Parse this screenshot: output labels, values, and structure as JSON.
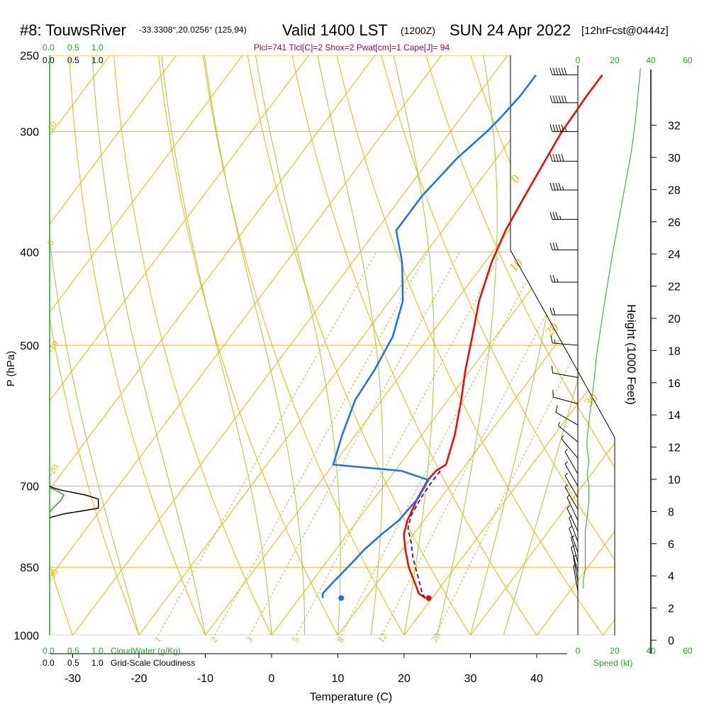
{
  "header": {
    "station": "#8: TouwsRiver",
    "location": "-33.3308°,20.0256° (125,94)",
    "valid": "Valid 1400 LST",
    "zulu": "(1200Z)",
    "date": "SUN 24 Apr 2022",
    "forecast": "[12hrFcst@0444z]",
    "indices": "Plcl=741 Tlcl[C]=2 Shox=2 Pwat[cm]=1 Cape[J]= 94"
  },
  "labels": {
    "pressure_axis": "P (hPa)",
    "temperature_axis": "Temperature (C)",
    "height_axis": "Height (1000 Feet)",
    "cloudwater": "CloudWater (g/Kg)",
    "cloudiness": "Grid-Scale Cloudiness",
    "speed": "Speed (kt)"
  },
  "scales": {
    "cloud_ticks": [
      "0.0",
      "0.5",
      "1.0"
    ],
    "speed_ticks": [
      "0",
      "20",
      "40",
      "60"
    ]
  },
  "colors": {
    "isotherm": "#f0b400",
    "dry_adiabat": "#f0b400",
    "moist_adiabat": "#9acd32",
    "mixing_ratio": "#9acd32",
    "temperature": "#ff0000",
    "dewpoint": "#1e6ef0",
    "parcel": "#800040",
    "wind_speed": "#22aa22",
    "cloudwater": "#22aa22",
    "indices_text": "#a0005a"
  },
  "chart_data": {
    "type": "line",
    "title": "#8: TouwsRiver -33.3308°,20.0256° (125,94) Valid 1400 LST (1200Z) SUN 24 Apr 2022 [12hrFcst@0444z]",
    "xlabel": "Temperature (C)",
    "ylabel": "P (hPa)",
    "y2label": "Height (1000 Feet)",
    "pressure_ticks": [
      250,
      300,
      400,
      500,
      700,
      850,
      1000
    ],
    "temperature_ticks": [
      -30,
      -20,
      -10,
      0,
      10,
      20,
      30,
      40
    ],
    "height_ticks": [
      0,
      2,
      4,
      6,
      8,
      10,
      12,
      14,
      16,
      18,
      20,
      22,
      24,
      26,
      28,
      30,
      32
    ],
    "mixing_ratio_labels": [
      "1",
      "2",
      "3",
      "5",
      "8",
      "12",
      "20"
    ],
    "adiabat_labels": [
      "10",
      "0",
      "-10",
      "-20",
      "-30",
      "0",
      "10",
      "20",
      "30"
    ],
    "series": [
      {
        "name": "Temperature",
        "points": [
          [
            19.0,
            915
          ],
          [
            17.5,
            905
          ],
          [
            15.5,
            880
          ],
          [
            13.0,
            850
          ],
          [
            10.5,
            815
          ],
          [
            8.5,
            785
          ],
          [
            7.5,
            760
          ],
          [
            6.5,
            720
          ],
          [
            6.0,
            690
          ],
          [
            6.2,
            675
          ],
          [
            7.0,
            665
          ],
          [
            5.0,
            620
          ],
          [
            2.0,
            570
          ],
          [
            -0.8,
            530
          ],
          [
            -3.5,
            490
          ],
          [
            -6.5,
            450
          ],
          [
            -9.0,
            410
          ],
          [
            -10.5,
            380
          ],
          [
            -11.5,
            350
          ],
          [
            -12.5,
            320
          ],
          [
            -13.2,
            300
          ],
          [
            -13.3,
            290
          ],
          [
            -13.5,
            275
          ],
          [
            -13.5,
            262
          ]
        ]
      },
      {
        "name": "Dewpoint",
        "points": [
          [
            3.5,
            915
          ],
          [
            3.0,
            905
          ],
          [
            3.3,
            880
          ],
          [
            3.8,
            850
          ],
          [
            4.3,
            815
          ],
          [
            5.2,
            785
          ],
          [
            6.2,
            760
          ],
          [
            6.6,
            720
          ],
          [
            6.1,
            690
          ],
          [
            1.0,
            675
          ],
          [
            -10.0,
            665
          ],
          [
            -12.0,
            620
          ],
          [
            -14.0,
            570
          ],
          [
            -14.5,
            530
          ],
          [
            -15.5,
            490
          ],
          [
            -18.0,
            450
          ],
          [
            -22.5,
            410
          ],
          [
            -27.0,
            380
          ],
          [
            -27.0,
            350
          ],
          [
            -26.0,
            320
          ],
          [
            -24.5,
            300
          ],
          [
            -24.0,
            290
          ],
          [
            -23.5,
            275
          ],
          [
            -23.5,
            262
          ]
        ]
      },
      {
        "name": "Parcel",
        "points": [
          [
            19.0,
            915
          ],
          [
            18.0,
            905
          ],
          [
            15.5,
            870
          ],
          [
            12.5,
            830
          ],
          [
            10.5,
            800
          ],
          [
            8.5,
            775
          ],
          [
            7.5,
            750
          ],
          [
            7.0,
            720
          ],
          [
            6.8,
            690
          ],
          [
            6.9,
            672
          ]
        ]
      },
      {
        "name": "Wind speed (kt)",
        "points": [
          [
            3,
            895
          ],
          [
            3,
            875
          ],
          [
            4,
            855
          ],
          [
            4,
            835
          ],
          [
            4,
            810
          ],
          [
            4,
            780
          ],
          [
            5,
            755
          ],
          [
            6,
            725
          ],
          [
            6,
            700
          ],
          [
            5,
            680
          ],
          [
            6,
            660
          ],
          [
            5,
            640
          ],
          [
            5,
            625
          ],
          [
            6,
            600
          ],
          [
            7,
            580
          ],
          [
            8,
            560
          ],
          [
            9,
            540
          ],
          [
            10,
            515
          ],
          [
            12,
            485
          ],
          [
            15,
            445
          ],
          [
            19,
            400
          ],
          [
            24,
            355
          ],
          [
            29,
            315
          ],
          [
            31,
            295
          ],
          [
            33,
            270
          ],
          [
            34,
            258
          ]
        ]
      },
      {
        "name": "CloudWater",
        "points": [
          [
            0.0,
            745
          ],
          [
            0.05,
            738
          ],
          [
            0.15,
            725
          ],
          [
            0.2,
            715
          ],
          [
            0.1,
            708
          ],
          [
            0.0,
            703
          ]
        ]
      },
      {
        "name": "Grid-Scale Cloudiness",
        "points": [
          [
            0.0,
            755
          ],
          [
            0.2,
            748
          ],
          [
            0.5,
            742
          ],
          [
            0.68,
            738
          ],
          [
            0.68,
            722
          ],
          [
            0.5,
            715
          ],
          [
            0.2,
            708
          ],
          [
            0.05,
            703
          ],
          [
            0.0,
            700
          ]
        ]
      }
    ],
    "markers": [
      {
        "name": "Surface temperature",
        "t": 19.5,
        "p": 915
      },
      {
        "name": "Surface dewpoint",
        "t": 6.3,
        "p": 915
      }
    ],
    "wind_barbs": [
      {
        "p": 262,
        "dir": 270,
        "spd": 60
      },
      {
        "p": 280,
        "dir": 270,
        "spd": 60
      },
      {
        "p": 300,
        "dir": 270,
        "spd": 55
      },
      {
        "p": 322,
        "dir": 270,
        "spd": 50
      },
      {
        "p": 345,
        "dir": 270,
        "spd": 45
      },
      {
        "p": 370,
        "dir": 270,
        "spd": 35
      },
      {
        "p": 398,
        "dir": 270,
        "spd": 30
      },
      {
        "p": 430,
        "dir": 270,
        "spd": 25
      },
      {
        "p": 465,
        "dir": 270,
        "spd": 20
      },
      {
        "p": 500,
        "dir": 275,
        "spd": 15
      },
      {
        "p": 540,
        "dir": 280,
        "spd": 10
      },
      {
        "p": 575,
        "dir": 285,
        "spd": 10
      },
      {
        "p": 605,
        "dir": 300,
        "spd": 10
      },
      {
        "p": 630,
        "dir": 310,
        "spd": 5
      },
      {
        "p": 655,
        "dir": 320,
        "spd": 5
      },
      {
        "p": 680,
        "dir": 330,
        "spd": 5
      },
      {
        "p": 700,
        "dir": 330,
        "spd": 5
      },
      {
        "p": 720,
        "dir": 330,
        "spd": 5
      },
      {
        "p": 740,
        "dir": 330,
        "spd": 5
      },
      {
        "p": 760,
        "dir": 335,
        "spd": 5
      },
      {
        "p": 780,
        "dir": 335,
        "spd": 5
      },
      {
        "p": 800,
        "dir": 340,
        "spd": 5
      },
      {
        "p": 820,
        "dir": 340,
        "spd": 5
      },
      {
        "p": 840,
        "dir": 345,
        "spd": 5
      },
      {
        "p": 860,
        "dir": 345,
        "spd": 5
      },
      {
        "p": 880,
        "dir": 350,
        "spd": 5
      },
      {
        "p": 900,
        "dir": 350,
        "spd": 5
      }
    ]
  }
}
